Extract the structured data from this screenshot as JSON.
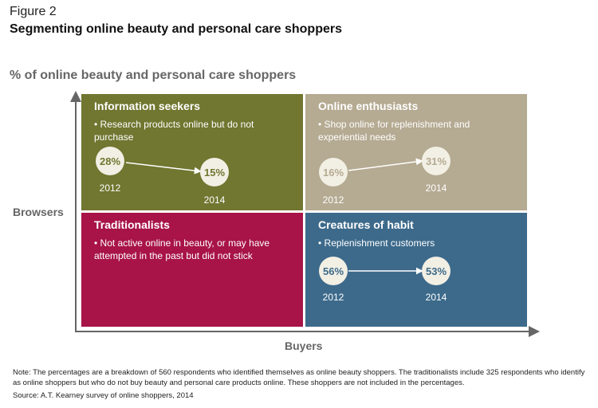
{
  "header": {
    "figure_label": "Figure 2",
    "title": "Segmenting online beauty and personal care shoppers"
  },
  "chart_title": "% of online beauty and personal care shoppers",
  "axes": {
    "y_label": "Browsers",
    "x_label": "Buyers"
  },
  "colors": {
    "information_seekers": "#717630",
    "online_enthusiasts": "#b5aa92",
    "traditionalists": "#a81447",
    "creatures_of_habit": "#3d6a8b",
    "bubble_fill": "#f2efe4",
    "axis": "#666666"
  },
  "quadrants": {
    "information_seekers": {
      "title": "Information seekers",
      "description": "• Research products online but do not purchase",
      "value_2012": "28%",
      "year_2012": "2012",
      "value_2014": "15%",
      "year_2014": "2014"
    },
    "online_enthusiasts": {
      "title": "Online enthusiasts",
      "description": "• Shop online for replenishment and experiential needs",
      "value_2012": "16%",
      "year_2012": "2012",
      "value_2014": "31%",
      "year_2014": "2014"
    },
    "traditionalists": {
      "title": "Traditionalists",
      "description": "• Not active online in beauty, or may have attempted in the past but did not stick"
    },
    "creatures_of_habit": {
      "title": "Creatures of habit",
      "description": "• Replenishment customers",
      "value_2012": "56%",
      "year_2012": "2012",
      "value_2014": "53%",
      "year_2014": "2014"
    }
  },
  "footer": {
    "note": "Note: The percentages are a breakdown of 560 respondents who identified themselves as online beauty shoppers. The traditionalists include 325 respondents who identify as online shoppers but who do not buy beauty and personal care products online. These shoppers are not included in the percentages.",
    "source": "Source: A.T. Kearney survey of online shoppers, 2014"
  }
}
